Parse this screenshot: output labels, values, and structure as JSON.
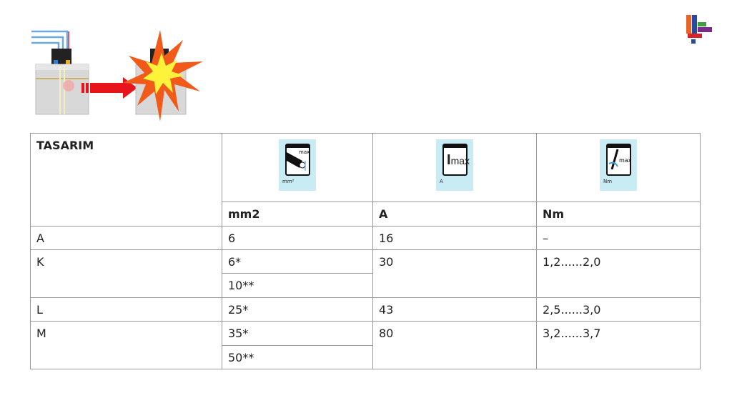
{
  "table": {
    "header": {
      "design": "TASARIM",
      "icons": [
        {
          "name": "cable-cross-section-icon",
          "sub": "mm²",
          "text": "max"
        },
        {
          "name": "max-current-icon",
          "sub": "A",
          "text": "I",
          "sub2": "max"
        },
        {
          "name": "torque-screwdriver-icon",
          "sub": "Nm",
          "text": "max"
        }
      ],
      "units": [
        "mm2",
        "A",
        "Nm"
      ]
    },
    "rows": [
      {
        "design": "A",
        "mm2": [
          "6"
        ],
        "a": "16",
        "nm": "–"
      },
      {
        "design": "K",
        "mm2": [
          "6*",
          "10**"
        ],
        "a": "30",
        "nm": "1,2......2,0"
      },
      {
        "design": "L",
        "mm2": [
          "25*"
        ],
        "a": "43",
        "nm": "2,5......3,0"
      },
      {
        "design": "M",
        "mm2": [
          "35*",
          "50**"
        ],
        "a": "80",
        "nm": "3,2......3,7"
      }
    ]
  },
  "colors": {
    "arrow": "#e8141c",
    "explosion": "#f25a1a",
    "icon_bg": "#c9ecf4"
  }
}
